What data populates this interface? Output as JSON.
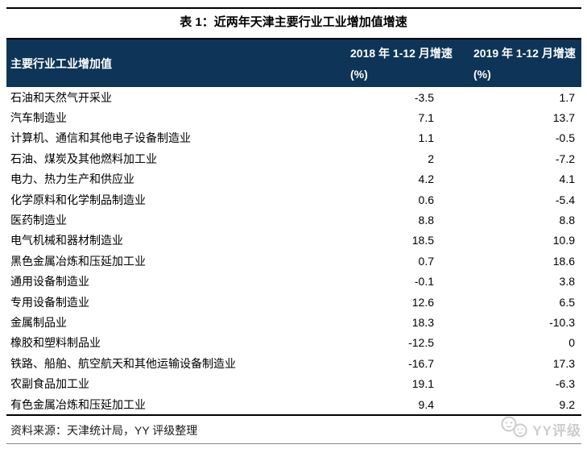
{
  "title": "表 1：近两年天津主要行业工业增加值增速",
  "table": {
    "header": {
      "col1": "主要行业工业增加值",
      "col2": "2018 年 1-12 月增速(%)",
      "col3": "2019 年 1-12 月增速(%)"
    },
    "rows": [
      {
        "industry": "石油和天然气开采业",
        "y2018": "-3.5",
        "y2019": "1.7"
      },
      {
        "industry": "汽车制造业",
        "y2018": "7.1",
        "y2019": "13.7"
      },
      {
        "industry": "计算机、通信和其他电子设备制造业",
        "y2018": "1.1",
        "y2019": "-0.5"
      },
      {
        "industry": "石油、煤炭及其他燃料加工业",
        "y2018": "2",
        "y2019": "-7.2"
      },
      {
        "industry": "电力、热力生产和供应业",
        "y2018": "4.2",
        "y2019": "4.1"
      },
      {
        "industry": "化学原料和化学制品制造业",
        "y2018": "0.6",
        "y2019": "-5.4"
      },
      {
        "industry": "医药制造业",
        "y2018": "8.8",
        "y2019": "8.8"
      },
      {
        "industry": "电气机械和器材制造业",
        "y2018": "18.5",
        "y2019": "10.9"
      },
      {
        "industry": "黑色金属冶炼和压延加工业",
        "y2018": "0.7",
        "y2019": "18.6"
      },
      {
        "industry": "通用设备制造业",
        "y2018": "-0.1",
        "y2019": "3.8"
      },
      {
        "industry": "专用设备制造业",
        "y2018": "12.6",
        "y2019": "6.5"
      },
      {
        "industry": "金属制品业",
        "y2018": "18.3",
        "y2019": "-10.3"
      },
      {
        "industry": "橡胶和塑料制品业",
        "y2018": "-12.5",
        "y2019": "0"
      },
      {
        "industry": "铁路、船舶、航空航天和其他运输设备制造业",
        "y2018": "-16.7",
        "y2019": "17.3"
      },
      {
        "industry": "农副食品加工业",
        "y2018": "19.1",
        "y2019": "-6.3"
      },
      {
        "industry": "有色金属冶炼和压延加工业",
        "y2018": "9.4",
        "y2019": "9.2"
      }
    ]
  },
  "footer": {
    "source": "资料来源：天津统计局，YY 评级整理",
    "logo_text": "YY评级"
  },
  "colors": {
    "header_bg": "#0E3557",
    "header_text": "#FFFFFF",
    "rule_black": "#000000",
    "rule_gray": "#8C8C8C",
    "logo_gray": "#CDCDCD"
  }
}
